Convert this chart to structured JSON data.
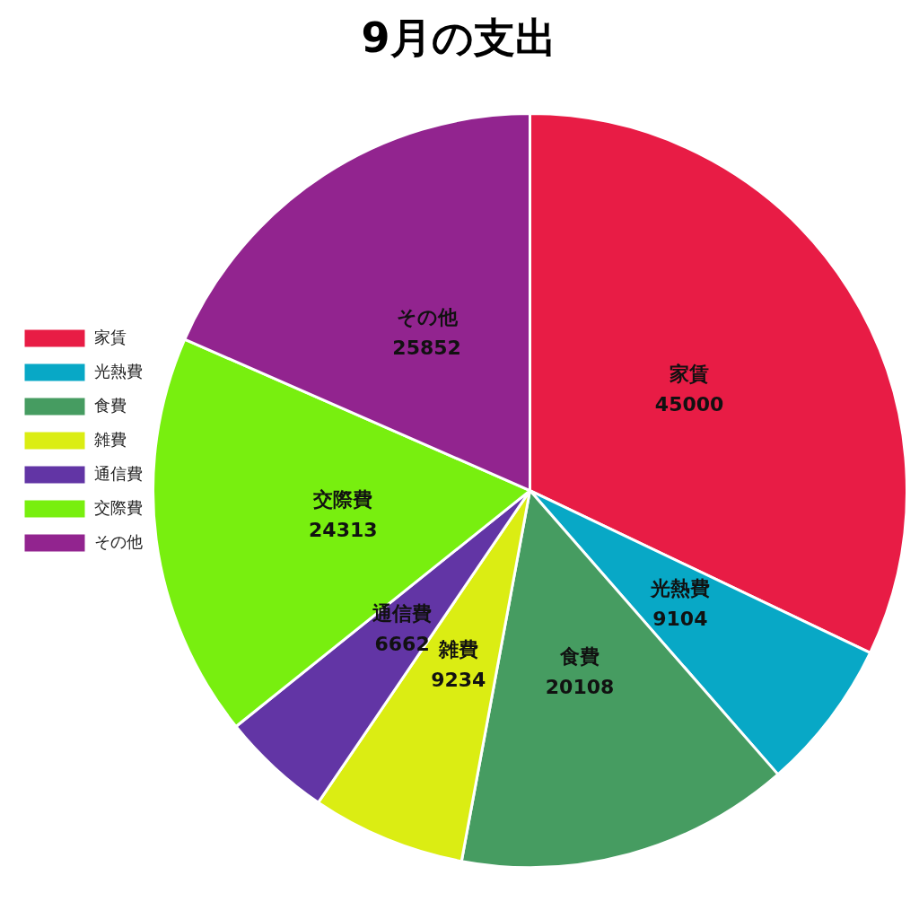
{
  "chart_data": {
    "type": "pie",
    "title": "9月の支出",
    "categories": [
      "家賃",
      "光熱費",
      "食費",
      "雑費",
      "通信費",
      "交際費",
      "その他"
    ],
    "values": [
      45000,
      9104,
      20108,
      9234,
      6662,
      24313,
      25852
    ],
    "colors": [
      "#e81c45",
      "#08a8c6",
      "#469c61",
      "#dbed13",
      "#6235a5",
      "#78ef0f",
      "#92248f"
    ],
    "data_labels": true,
    "legend": "left"
  }
}
